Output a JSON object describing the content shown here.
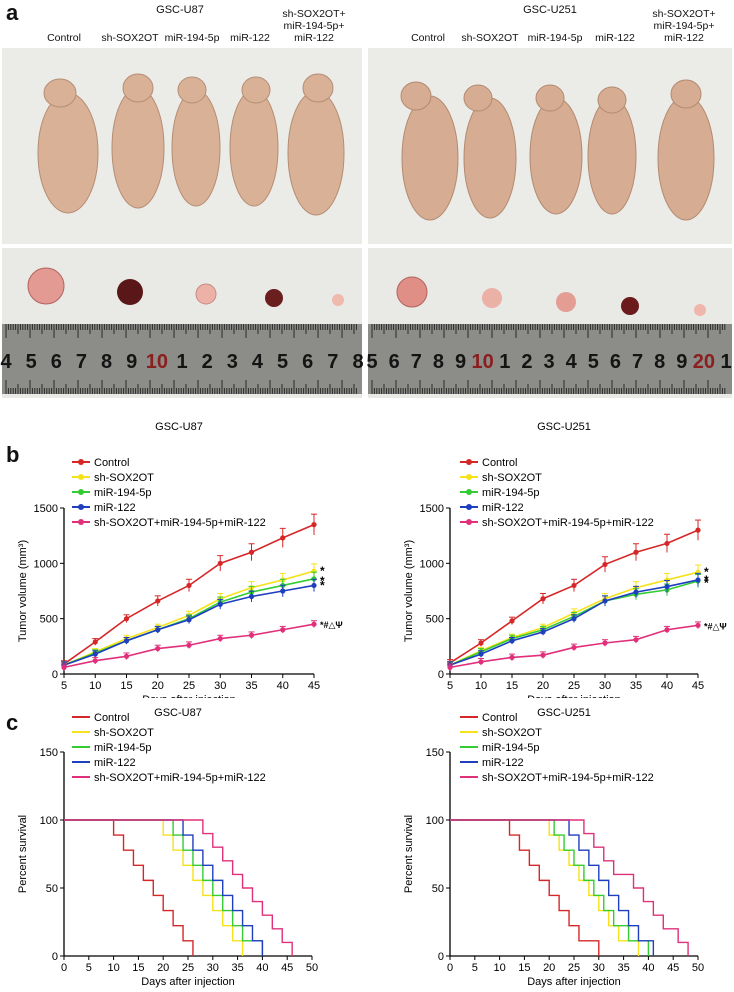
{
  "figure": {
    "panel_a": {
      "letter": "a",
      "left_title": "GSC-U87",
      "right_title": "GSC-U251",
      "left_groups": [
        "Control",
        "sh-SOX2OT",
        "miR-194-5p",
        "miR-122",
        "sh-SOX2OT+\nmiR-194-5p+\nmiR-122"
      ],
      "right_groups": [
        "Control",
        "sh-SOX2OT",
        "miR-194-5p",
        "miR-122",
        "sh-SOX2OT+\nmiR-194-5p+\nmiR-122"
      ],
      "ruler_left": [
        "4",
        "5",
        "6",
        "7",
        "8",
        "9",
        "10",
        "1",
        "2",
        "3",
        "4",
        "5",
        "6",
        "7",
        "8"
      ],
      "ruler_right": [
        "5",
        "6",
        "7",
        "8",
        "9",
        "10",
        "1",
        "2",
        "3",
        "4",
        "5",
        "6",
        "7",
        "8",
        "9",
        "20",
        "1"
      ],
      "photo_bg": "#ececea",
      "tumor_color": "#e8a29c"
    },
    "panel_b": {
      "letter": "b"
    },
    "panel_c": {
      "letter": "c"
    }
  },
  "legend_colors": [
    "#d62728",
    "#f5e21b",
    "#33cc33",
    "#1f3fbf",
    "#e0307a"
  ],
  "chart_data": [
    {
      "type": "line",
      "title": "GSC-U87",
      "xlabel": "Days after injection",
      "ylabel": "Tumor volume (mm³)",
      "xlim": [
        5,
        45
      ],
      "ylim": [
        0,
        1500
      ],
      "xticks": [
        5,
        10,
        15,
        20,
        25,
        30,
        35,
        40,
        45
      ],
      "yticks": [
        0,
        500,
        1000,
        1500
      ],
      "x": [
        5,
        10,
        15,
        20,
        25,
        30,
        35,
        40,
        45
      ],
      "series": [
        {
          "name": "Control",
          "color": "#d62728",
          "values": [
            90,
            290,
            500,
            660,
            800,
            1000,
            1100,
            1230,
            1350
          ]
        },
        {
          "name": "sh-SOX2OT",
          "color": "#f5e21b",
          "values": [
            80,
            200,
            320,
            420,
            530,
            680,
            780,
            850,
            930
          ]
        },
        {
          "name": "miR-194-5p",
          "color": "#33cc33",
          "values": [
            80,
            190,
            300,
            400,
            500,
            650,
            740,
            800,
            860
          ]
        },
        {
          "name": "miR-122",
          "color": "#1f3fbf",
          "values": [
            80,
            180,
            300,
            400,
            490,
            630,
            700,
            750,
            800
          ]
        },
        {
          "name": "sh-SOX2OT+miR-194-5p+miR-122",
          "color": "#e0307a",
          "values": [
            60,
            120,
            160,
            230,
            260,
            320,
            350,
            400,
            450
          ]
        }
      ],
      "annotations": [
        "*",
        "*",
        "*",
        "*#△Ψ"
      ]
    },
    {
      "type": "line",
      "title": "GSC-U251",
      "xlabel": "Days after injection",
      "ylabel": "Tumor volume (mm³)",
      "xlim": [
        5,
        45
      ],
      "ylim": [
        0,
        1500
      ],
      "xticks": [
        5,
        10,
        15,
        20,
        25,
        30,
        35,
        40,
        45
      ],
      "yticks": [
        0,
        500,
        1000,
        1500
      ],
      "x": [
        5,
        10,
        15,
        20,
        25,
        30,
        35,
        40,
        45
      ],
      "series": [
        {
          "name": "Control",
          "color": "#d62728",
          "values": [
            100,
            280,
            480,
            680,
            800,
            990,
            1100,
            1180,
            1300
          ]
        },
        {
          "name": "sh-SOX2OT",
          "color": "#f5e21b",
          "values": [
            80,
            210,
            330,
            420,
            550,
            680,
            780,
            850,
            920
          ]
        },
        {
          "name": "miR-194-5p",
          "color": "#33cc33",
          "values": [
            80,
            200,
            320,
            400,
            520,
            660,
            720,
            760,
            840
          ]
        },
        {
          "name": "miR-122",
          "color": "#1f3fbf",
          "values": [
            80,
            180,
            300,
            380,
            500,
            660,
            740,
            790,
            850
          ]
        },
        {
          "name": "sh-SOX2OT+miR-194-5p+miR-122",
          "color": "#e0307a",
          "values": [
            60,
            110,
            150,
            170,
            240,
            280,
            310,
            400,
            440
          ]
        }
      ],
      "annotations": [
        "*",
        "*",
        "*",
        "*#△Ψ"
      ]
    },
    {
      "type": "line",
      "subtype": "survival-step",
      "title": "GSC-U87",
      "xlabel": "Days after injection",
      "ylabel": "Percent survival",
      "xlim": [
        0,
        50
      ],
      "ylim": [
        0,
        150
      ],
      "xticks": [
        0,
        5,
        10,
        15,
        20,
        25,
        30,
        35,
        40,
        45,
        50
      ],
      "yticks": [
        0,
        50,
        100,
        150
      ],
      "series": [
        {
          "name": "Control",
          "color": "#d62728",
          "times": [
            10,
            12,
            14,
            16,
            18,
            20,
            22,
            24,
            26
          ],
          "step": 11.1
        },
        {
          "name": "sh-SOX2OT",
          "color": "#f5e21b",
          "times": [
            20,
            22,
            24,
            26,
            28,
            30,
            32,
            34,
            36
          ],
          "step": 11.1
        },
        {
          "name": "miR-194-5p",
          "color": "#33cc33",
          "times": [
            22,
            24,
            26,
            28,
            30,
            32,
            34,
            36,
            40
          ],
          "step": 11.1
        },
        {
          "name": "miR-122",
          "color": "#1f3fbf",
          "times": [
            24,
            26,
            28,
            30,
            32,
            34,
            36,
            38,
            40
          ],
          "step": 11.1
        },
        {
          "name": "sh-SOX2OT+miR-194-5p+miR-122",
          "color": "#e0307a",
          "times": [
            28,
            30,
            32,
            34,
            36,
            38,
            40,
            42,
            44,
            46
          ],
          "step": 10
        }
      ]
    },
    {
      "type": "line",
      "subtype": "survival-step",
      "title": "GSC-U251",
      "xlabel": "Days after injection",
      "ylabel": "Percent survival",
      "xlim": [
        0,
        50
      ],
      "ylim": [
        0,
        150
      ],
      "xticks": [
        0,
        5,
        10,
        15,
        20,
        25,
        30,
        35,
        40,
        45,
        50
      ],
      "yticks": [
        0,
        50,
        100,
        150
      ],
      "series": [
        {
          "name": "Control",
          "color": "#d62728",
          "times": [
            12,
            14,
            16,
            18,
            20,
            22,
            24,
            26,
            30
          ],
          "step": 11.1
        },
        {
          "name": "sh-SOX2OT",
          "color": "#f5e21b",
          "times": [
            20,
            22,
            24,
            26,
            28,
            30,
            32,
            34,
            38
          ],
          "step": 11.1
        },
        {
          "name": "miR-194-5p",
          "color": "#33cc33",
          "times": [
            21,
            23,
            25,
            27,
            29,
            31,
            33,
            36,
            40
          ],
          "step": 11.1
        },
        {
          "name": "miR-122",
          "color": "#1f3fbf",
          "times": [
            24,
            26,
            28,
            30,
            32,
            34,
            36,
            38,
            41
          ],
          "step": 11.1
        },
        {
          "name": "sh-SOX2OT+miR-194-5p+miR-122",
          "color": "#e0307a",
          "times": [
            27,
            29,
            31,
            33,
            37,
            39,
            41,
            43,
            46,
            48
          ],
          "step": 10
        }
      ]
    }
  ]
}
